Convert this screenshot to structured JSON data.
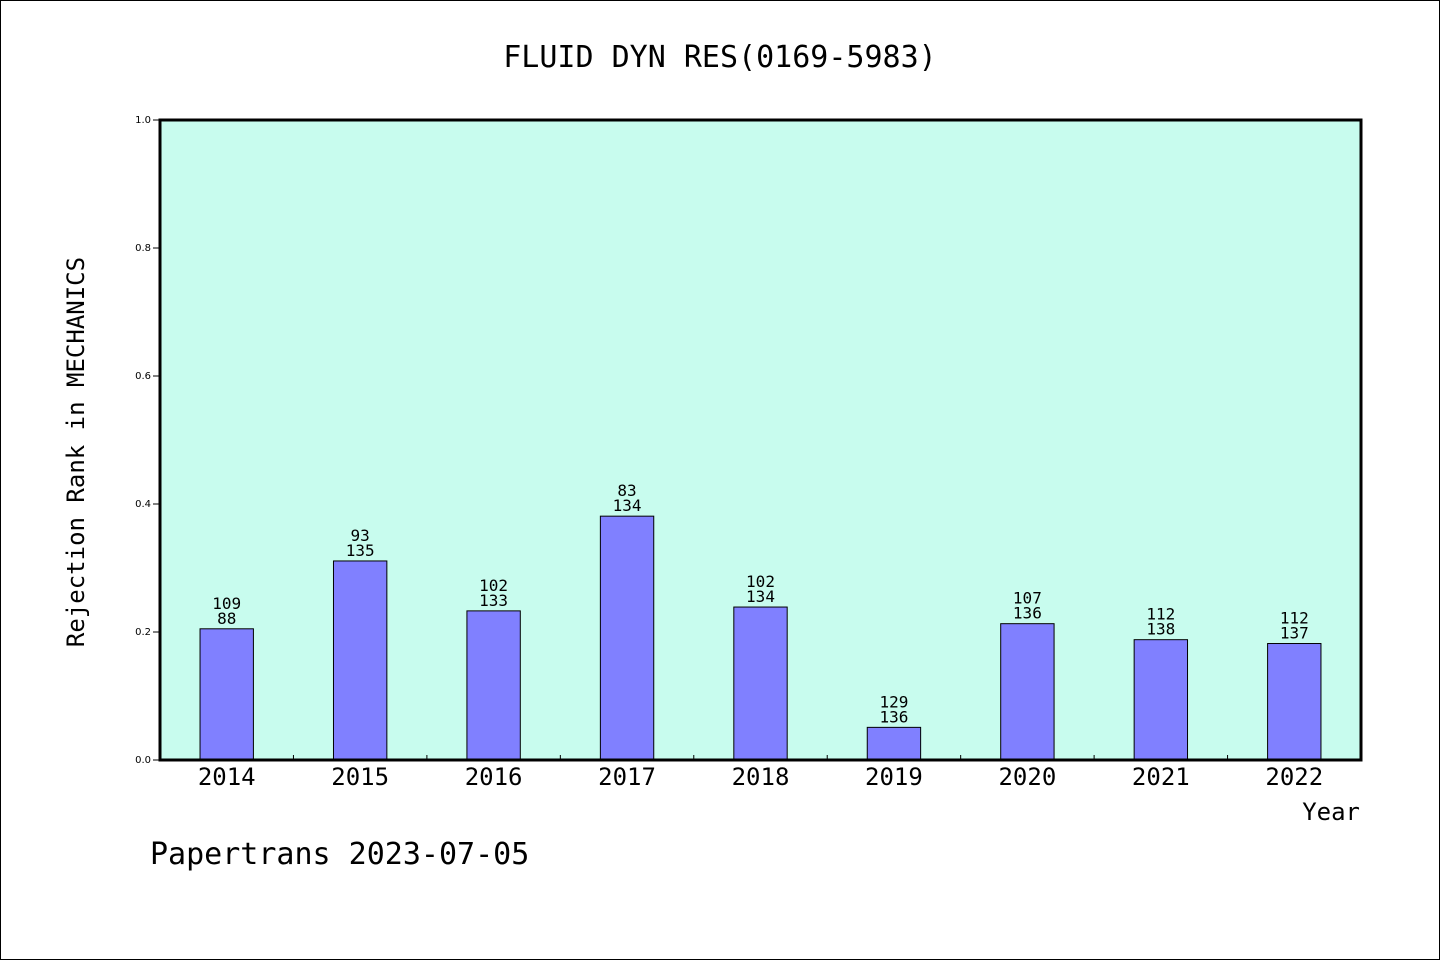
{
  "chart_data": {
    "type": "bar",
    "title": "FLUID DYN RES(0169-5983)",
    "xlabel": "Year",
    "ylabel": "Rejection Rank in MECHANICS",
    "ylim": [
      0,
      1.0
    ],
    "yticks": [
      "0.0",
      "0.2",
      "0.4",
      "0.6",
      "0.8",
      "1.0"
    ],
    "categories": [
      "2014",
      "2015",
      "2016",
      "2017",
      "2018",
      "2019",
      "2020",
      "2021",
      "2022"
    ],
    "values": [
      0.205,
      0.311,
      0.233,
      0.381,
      0.239,
      0.051,
      0.213,
      0.188,
      0.182
    ],
    "labels_top": [
      "109",
      "93",
      "102",
      "83",
      "102",
      "129",
      "107",
      "112",
      "112"
    ],
    "labels_bottom": [
      "88",
      "135",
      "133",
      "134",
      "134",
      "136",
      "136",
      "138",
      "137"
    ],
    "bar_color": "#8080ff",
    "plot_background": "#c8fcee",
    "grid": false,
    "footer": "Papertrans 2023-07-05"
  }
}
